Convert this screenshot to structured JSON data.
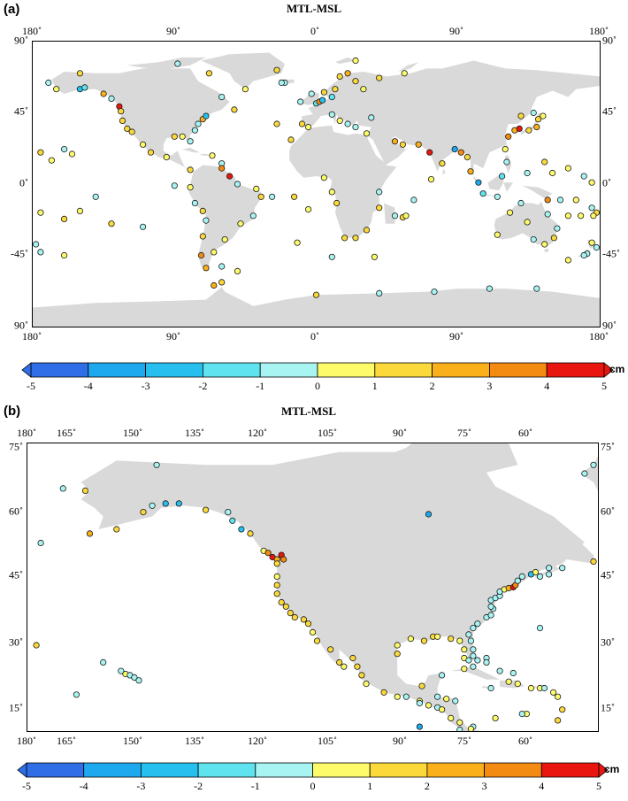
{
  "panels": [
    {
      "label": "(a)",
      "title": "MTL-MSL",
      "top_ticks": [
        "180˚",
        "90˚",
        "0˚",
        "90˚",
        "180˚"
      ],
      "bottom_ticks": [
        "180˚",
        "90˚",
        "0˚",
        "90˚",
        "180˚"
      ],
      "left_ticks": [
        "90˚",
        "45˚",
        "0˚",
        "-45˚",
        "90˚"
      ],
      "right_ticks": [
        "90˚",
        "45˚",
        "0˚",
        "-45˚",
        "90˚"
      ],
      "lon_range": [
        -180,
        180
      ],
      "lat_range": [
        -90,
        90
      ]
    },
    {
      "label": "(b)",
      "title": "MTL-MSL",
      "top_ticks": [
        "180˚",
        "165˚",
        "150˚",
        "135˚",
        "120˚",
        "105˚",
        "90˚",
        "75˚",
        "60˚"
      ],
      "bottom_ticks": [
        "180˚",
        "165˚",
        "150˚",
        "135˚",
        "120˚",
        "105˚",
        "90˚",
        "75˚",
        "60˚"
      ],
      "left_ticks": [
        "75˚",
        "60˚",
        "45˚",
        "30˚",
        "15˚"
      ],
      "right_ticks": [
        "75˚",
        "60˚",
        "45˚",
        "30˚",
        "15˚"
      ],
      "lon_range": [
        -180,
        -52
      ],
      "lat_range": [
        8,
        75
      ]
    }
  ],
  "colorbar": {
    "unit": "cm",
    "labels": [
      "-5",
      "-4",
      "-3",
      "-2",
      "-1",
      "0",
      "1",
      "2",
      "3",
      "4",
      "5"
    ],
    "colors": [
      "#2f6ee6",
      "#1ea8ee",
      "#27c0ee",
      "#5fe3ef",
      "#a7f4f3",
      "#fdfb6a",
      "#fbd93a",
      "#f9b01b",
      "#f38a12",
      "#ef5e10",
      "#e8160f"
    ]
  },
  "map_colors": {
    "land": "#d9d9d9",
    "ocean": "#ffffff",
    "marker_edge": "#1a1a1a"
  },
  "stations_world": [
    [
      -170,
      64,
      -0.5
    ],
    [
      -175,
      20,
      1
    ],
    [
      -160,
      22,
      -0.5
    ],
    [
      -155,
      19,
      0.5
    ],
    [
      -150,
      60,
      -3
    ],
    [
      -147,
      61,
      -1.5
    ],
    [
      -135,
      57,
      2
    ],
    [
      -130,
      54,
      -1
    ],
    [
      -125,
      49,
      4
    ],
    [
      -124,
      46,
      1
    ],
    [
      -123,
      40,
      1
    ],
    [
      -120,
      35,
      1
    ],
    [
      -117,
      33,
      1
    ],
    [
      -110,
      25,
      0.5
    ],
    [
      -105,
      20,
      1
    ],
    [
      -95,
      17,
      0.5
    ],
    [
      -90,
      30,
      1
    ],
    [
      -85,
      30,
      0.5
    ],
    [
      -80,
      27,
      -1
    ],
    [
      -77,
      34,
      -1
    ],
    [
      -75,
      38,
      -0.5
    ],
    [
      -72,
      41,
      2
    ],
    [
      -70,
      43,
      -3
    ],
    [
      -66,
      18,
      0.5
    ],
    [
      -60,
      13,
      -0.5
    ],
    [
      -80,
      9,
      1
    ],
    [
      -80,
      -2,
      0.5
    ],
    [
      -77,
      -12,
      -1
    ],
    [
      -72,
      -17,
      1
    ],
    [
      -70,
      -23,
      -0.5
    ],
    [
      -72,
      -33,
      1
    ],
    [
      -73,
      -45,
      3
    ],
    [
      -70,
      -53,
      2
    ],
    [
      -60,
      -52,
      -1
    ],
    [
      -58,
      -35,
      0.5
    ],
    [
      -48,
      -25,
      0.5
    ],
    [
      -40,
      -20,
      -0.5
    ],
    [
      -35,
      -8,
      1
    ],
    [
      -38,
      -3,
      0.5
    ],
    [
      -50,
      0,
      -1
    ],
    [
      -55,
      5,
      4
    ],
    [
      -60,
      10,
      3
    ],
    [
      -65,
      -43,
      0.5
    ],
    [
      -150,
      -17,
      0.5
    ],
    [
      -140,
      -8,
      -0.5
    ],
    [
      -160,
      -22,
      1
    ],
    [
      -175,
      -18,
      0.5
    ],
    [
      -178,
      -38,
      -0.5
    ],
    [
      -90,
      -1,
      -0.5
    ],
    [
      -110,
      -27,
      -0.5
    ],
    [
      -25,
      38,
      1
    ],
    [
      -16,
      28,
      1
    ],
    [
      -5,
      36,
      0.5
    ],
    [
      -9,
      38,
      1
    ],
    [
      -10,
      52,
      -1
    ],
    [
      -3,
      57,
      -1
    ],
    [
      0,
      51,
      -2
    ],
    [
      2,
      52,
      3
    ],
    [
      4,
      53,
      -3
    ],
    [
      5,
      58,
      1
    ],
    [
      10,
      55,
      -2
    ],
    [
      12,
      60,
      1
    ],
    [
      15,
      68,
      1
    ],
    [
      20,
      70,
      2
    ],
    [
      25,
      65,
      1
    ],
    [
      30,
      60,
      0.5
    ],
    [
      10,
      44,
      -0.5
    ],
    [
      15,
      40,
      0.5
    ],
    [
      20,
      38,
      -0.5
    ],
    [
      25,
      36,
      -0.5
    ],
    [
      32,
      32,
      0.5
    ],
    [
      35,
      42,
      -1
    ],
    [
      -20,
      64,
      -0.5
    ],
    [
      -22,
      64,
      -1
    ],
    [
      -45,
      60,
      0.5
    ],
    [
      -52,
      47,
      1
    ],
    [
      5,
      4,
      0.5
    ],
    [
      10,
      -5,
      0.5
    ],
    [
      13,
      -12,
      1
    ],
    [
      18,
      -34,
      1
    ],
    [
      25,
      -34,
      1
    ],
    [
      32,
      -29,
      1
    ],
    [
      40,
      -15,
      1
    ],
    [
      40,
      -5,
      -0.5
    ],
    [
      55,
      -21,
      1
    ],
    [
      57,
      -20,
      0.5
    ],
    [
      73,
      3,
      0.5
    ],
    [
      55,
      25,
      1
    ],
    [
      50,
      27,
      2
    ],
    [
      65,
      25,
      2
    ],
    [
      72,
      20,
      4
    ],
    [
      80,
      13,
      1
    ],
    [
      88,
      22,
      -4
    ],
    [
      92,
      20,
      3
    ],
    [
      96,
      17,
      1
    ],
    [
      98,
      8,
      2
    ],
    [
      103,
      1,
      -4
    ],
    [
      106,
      -6,
      -2
    ],
    [
      115,
      -8,
      -1
    ],
    [
      118,
      5,
      -2
    ],
    [
      121,
      14,
      -1
    ],
    [
      120,
      22,
      0.5
    ],
    [
      122,
      30,
      3
    ],
    [
      126,
      34,
      2
    ],
    [
      129,
      35,
      4
    ],
    [
      135,
      34,
      1
    ],
    [
      140,
      36,
      2
    ],
    [
      141,
      41,
      1
    ],
    [
      144,
      43,
      0.5
    ],
    [
      138,
      45,
      -0.5
    ],
    [
      130,
      43,
      1
    ],
    [
      151,
      -34,
      1
    ],
    [
      153,
      -28,
      -1
    ],
    [
      145,
      -38,
      0.5
    ],
    [
      138,
      -35,
      -0.5
    ],
    [
      130,
      -12,
      -1
    ],
    [
      123,
      -18,
      0.5
    ],
    [
      115,
      -32,
      0.5
    ],
    [
      134,
      -24,
      0.5
    ],
    [
      147,
      -19,
      -0.5
    ],
    [
      147,
      -10,
      3
    ],
    [
      155,
      -10,
      -0.5
    ],
    [
      160,
      -20,
      0.5
    ],
    [
      168,
      -20,
      0.5
    ],
    [
      175,
      -15,
      -0.5
    ],
    [
      178,
      -18,
      1
    ],
    [
      172,
      -44,
      -0.5
    ],
    [
      175,
      -37,
      0.5
    ],
    [
      178,
      -40,
      -0.5
    ],
    [
      170,
      -45,
      -0.5
    ],
    [
      160,
      10,
      0.5
    ],
    [
      170,
      5,
      -1
    ],
    [
      175,
      1,
      0.5
    ],
    [
      150,
      7,
      0.5
    ],
    [
      145,
      14,
      1
    ],
    [
      134,
      7,
      -0.5
    ],
    [
      160,
      -48,
      0.5
    ],
    [
      140,
      -66,
      -0.5
    ],
    [
      110,
      -66,
      -0.5
    ],
    [
      75,
      -68,
      -0.5
    ],
    [
      40,
      -69,
      -0.5
    ],
    [
      0,
      -70,
      1
    ],
    [
      -65,
      -64,
      2
    ],
    [
      -60,
      -62,
      1
    ],
    [
      -50,
      -55,
      0.5
    ],
    [
      -28,
      -8,
      -0.5
    ],
    [
      -14,
      -8,
      1
    ],
    [
      -5,
      -16,
      0.5
    ],
    [
      -12,
      -37,
      0.5
    ],
    [
      10,
      -46,
      -0.5
    ],
    [
      37,
      -46,
      0.5
    ],
    [
      50,
      -20,
      -0.5
    ],
    [
      -130,
      -25,
      1
    ],
    [
      -175,
      -43,
      -0.5
    ],
    [
      -168,
      15,
      0.5
    ],
    [
      -165,
      60,
      0.5
    ],
    [
      -150,
      70,
      1
    ],
    [
      -88,
      76,
      -0.5
    ],
    [
      -60,
      55,
      -1
    ],
    [
      -68,
      70,
      1
    ],
    [
      -25,
      72,
      1
    ],
    [
      25,
      78,
      0.5
    ],
    [
      40,
      67,
      1
    ],
    [
      56,
      70,
      0.5
    ],
    [
      176,
      -20,
      0.5
    ],
    [
      165,
      -10,
      0.5
    ],
    [
      62,
      -10,
      -1
    ],
    [
      -160,
      -45,
      0.5
    ]
  ],
  "stations_na": [
    [
      -178,
      28,
      1
    ],
    [
      -177,
      51.8,
      -0.5
    ],
    [
      -172,
      64.5,
      -0.5
    ],
    [
      -167,
      64,
      1
    ],
    [
      -166,
      54,
      2
    ],
    [
      -160,
      55,
      1
    ],
    [
      -158,
      21.3,
      0.5
    ],
    [
      -157,
      21,
      -0.5
    ],
    [
      -156,
      20.5,
      -0.5
    ],
    [
      -155,
      19.8,
      -0.5
    ],
    [
      -159,
      22,
      -0.5
    ],
    [
      -163,
      24,
      -0.5
    ],
    [
      -169,
      16.5,
      -0.5
    ],
    [
      -154,
      59,
      1
    ],
    [
      -152,
      60.5,
      -0.5
    ],
    [
      -149,
      61,
      -3
    ],
    [
      -146,
      61,
      -3
    ],
    [
      -151,
      70,
      -0.5
    ],
    [
      -140,
      59.5,
      1
    ],
    [
      -135,
      59,
      -1
    ],
    [
      -134,
      57,
      -2
    ],
    [
      -132,
      55,
      -3
    ],
    [
      -130,
      54,
      1
    ],
    [
      -127,
      50,
      0.5
    ],
    [
      -126,
      49.5,
      3
    ],
    [
      -125,
      48.5,
      4
    ],
    [
      -124,
      48,
      2
    ],
    [
      -124,
      47,
      1
    ],
    [
      -123,
      49,
      4
    ],
    [
      -122.5,
      48,
      3
    ],
    [
      -124,
      44,
      0.5
    ],
    [
      -124,
      42,
      1
    ],
    [
      -124,
      40,
      1
    ],
    [
      -123,
      38,
      1
    ],
    [
      -122,
      37,
      1
    ],
    [
      -121,
      35.5,
      1
    ],
    [
      -120,
      34.5,
      1
    ],
    [
      -118,
      34,
      1
    ],
    [
      -117,
      33,
      1
    ],
    [
      -116,
      31,
      0.5
    ],
    [
      -115,
      29,
      1
    ],
    [
      -112,
      27,
      1
    ],
    [
      -110,
      24,
      1
    ],
    [
      -109,
      23,
      0.5
    ],
    [
      -107,
      25,
      1
    ],
    [
      -106,
      23,
      1
    ],
    [
      -105,
      21,
      1
    ],
    [
      -104,
      19,
      0.5
    ],
    [
      -100,
      17,
      1
    ],
    [
      -97,
      16,
      0.5
    ],
    [
      -95,
      16,
      -0.5
    ],
    [
      -92,
      15,
      0.5
    ],
    [
      -90,
      14,
      0.5
    ],
    [
      -88,
      13.5,
      -0.5
    ],
    [
      -87,
      13,
      0.5
    ],
    [
      -85,
      11,
      0.5
    ],
    [
      -83,
      10,
      0.5
    ],
    [
      -97,
      26,
      1
    ],
    [
      -97,
      28,
      0.5
    ],
    [
      -94,
      29.5,
      0.5
    ],
    [
      -91,
      29,
      1
    ],
    [
      -89,
      30,
      1
    ],
    [
      -88,
      30,
      0.5
    ],
    [
      -85,
      29.5,
      1
    ],
    [
      -83,
      29,
      0.5
    ],
    [
      -82,
      27,
      0.5
    ],
    [
      -82,
      25,
      0.5
    ],
    [
      -81,
      24.5,
      -0.5
    ],
    [
      -80,
      25.5,
      -1
    ],
    [
      -80,
      27,
      -1
    ],
    [
      -80.5,
      29,
      -0.5
    ],
    [
      -81,
      30.5,
      -0.5
    ],
    [
      -80,
      32,
      -1
    ],
    [
      -79,
      33,
      -1
    ],
    [
      -77,
      34.5,
      -0.5
    ],
    [
      -76,
      35,
      -1
    ],
    [
      -75.5,
      36.5,
      -0.5
    ],
    [
      -76,
      37,
      -0.5
    ],
    [
      -76,
      38.5,
      -1
    ],
    [
      -75,
      39,
      -0.5
    ],
    [
      -74,
      39.5,
      -0.5
    ],
    [
      -74,
      40.5,
      -1
    ],
    [
      -73,
      41,
      0.5
    ],
    [
      -72,
      41.3,
      2
    ],
    [
      -71,
      41.5,
      4
    ],
    [
      -70.5,
      42,
      3
    ],
    [
      -70,
      43,
      -1
    ],
    [
      -69,
      44,
      -0.5
    ],
    [
      -67,
      44.5,
      -3
    ],
    [
      -66,
      45,
      0.5
    ],
    [
      -65,
      44,
      -0.5
    ],
    [
      -63,
      44.5,
      -0.5
    ],
    [
      -60,
      46,
      -0.5
    ],
    [
      -53,
      47.5,
      1
    ],
    [
      -63,
      46,
      -0.5
    ],
    [
      -65,
      32,
      -0.5
    ],
    [
      -90,
      58.5,
      -4
    ],
    [
      -87,
      21,
      -0.5
    ],
    [
      -88,
      16,
      -0.5
    ],
    [
      -86,
      15.5,
      0.5
    ],
    [
      -84,
      15,
      -0.5
    ],
    [
      -82,
      22.5,
      0.5
    ],
    [
      -80,
      23,
      -0.5
    ],
    [
      -77,
      25,
      -0.5
    ],
    [
      -77,
      24,
      -0.5
    ],
    [
      -76,
      18,
      -0.5
    ],
    [
      -70,
      19,
      0.5
    ],
    [
      -67,
      18,
      0.5
    ],
    [
      -65,
      18,
      0.5
    ],
    [
      -64,
      18,
      -0.5
    ],
    [
      -62,
      17,
      0.5
    ],
    [
      -61,
      16,
      0.5
    ],
    [
      -60,
      13,
      1
    ],
    [
      -61,
      10.5,
      1
    ],
    [
      -68,
      12,
      0.5
    ],
    [
      -69,
      12,
      -0.5
    ],
    [
      -75,
      11,
      0.5
    ],
    [
      -80,
      9,
      -0.5
    ],
    [
      -80.5,
      8.5,
      0.5
    ],
    [
      -83,
      8.3,
      -0.5
    ],
    [
      -92,
      9,
      -4
    ],
    [
      -79,
      24.5,
      -0.5
    ],
    [
      -74,
      22,
      -0.5
    ],
    [
      -71,
      21.5,
      -0.5
    ],
    [
      -72,
      19.5,
      0.5
    ],
    [
      -55,
      68,
      -0.5
    ],
    [
      -53,
      70,
      -0.5
    ],
    [
      -92,
      14.5,
      -0.5
    ],
    [
      -91.5,
      18.5,
      1
    ]
  ]
}
